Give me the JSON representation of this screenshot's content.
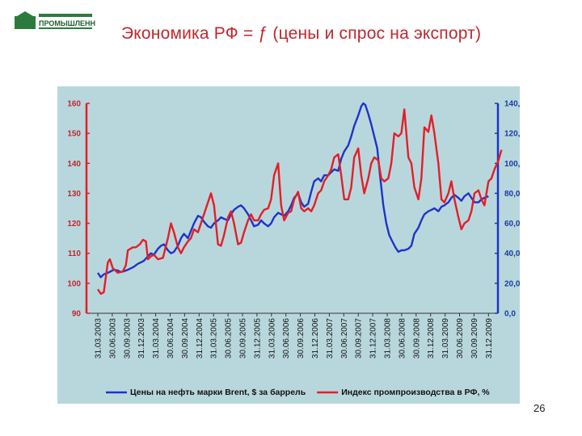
{
  "header": {
    "title": "Экономика РФ = ƒ (цены и спрос на экспорт)",
    "logo_text": "ПРОМЫШЛЕННОСТЬ"
  },
  "footer": {
    "page_number": "26"
  },
  "colors": {
    "red_series": "#e41e26",
    "blue_series": "#1f33c8",
    "panel": "#b8d7dd"
  },
  "chart_data": {
    "type": "line",
    "title": "",
    "left_axis": {
      "range": [
        90,
        160
      ],
      "ticks": [
        "90",
        "100",
        "110",
        "120",
        "130",
        "140",
        "150",
        "160"
      ]
    },
    "right_axis": {
      "range": [
        0,
        140
      ],
      "ticks": [
        "0,0",
        "20,0",
        "40,0",
        "60,0",
        "80,0",
        "100,0",
        "120,0",
        "140,0"
      ]
    },
    "x_tick_labels": [
      "31.03.2003",
      "30.06.2003",
      "30.09.2003",
      "31.12.2003",
      "31.03.2004",
      "30.06.2004",
      "30.09.2004",
      "31.12.2004",
      "31.03.2005",
      "30.06.2005",
      "30.09.2005",
      "31.12.2005",
      "31.03.2006",
      "30.06.2006",
      "30.09.2006",
      "31.12.2006",
      "31.03.2007",
      "30.06.2007",
      "30.09.2007",
      "31.12.2007",
      "31.03.2008",
      "30.06.2008",
      "30.09.2008",
      "31.12.2008",
      "31.03.2009",
      "30.06.2009",
      "30.09.2009",
      "31.12.2009"
    ],
    "series": [
      {
        "name": "Цены на нефть марки Brent, $ за баррель",
        "axis": "right",
        "color": "#1f33c8",
        "points": [
          [
            0,
            27
          ],
          [
            0.3,
            24
          ],
          [
            0.6,
            26
          ],
          [
            1,
            27
          ],
          [
            1.3,
            28
          ],
          [
            1.6,
            29
          ],
          [
            2,
            28.5
          ],
          [
            2.3,
            27.5
          ],
          [
            2.6,
            28
          ],
          [
            3,
            29
          ],
          [
            3.3,
            30
          ],
          [
            3.6,
            31
          ],
          [
            4,
            33
          ],
          [
            4.3,
            34
          ],
          [
            4.6,
            35
          ],
          [
            5,
            38
          ],
          [
            5.3,
            40
          ],
          [
            5.6,
            39
          ],
          [
            6,
            43
          ],
          [
            6.3,
            45
          ],
          [
            6.6,
            46
          ],
          [
            7,
            42
          ],
          [
            7.3,
            40
          ],
          [
            7.6,
            41
          ],
          [
            8,
            45
          ],
          [
            8.3,
            50
          ],
          [
            8.6,
            53
          ],
          [
            9,
            50
          ],
          [
            9.3,
            55
          ],
          [
            9.6,
            60
          ],
          [
            10,
            65
          ],
          [
            10.3,
            64
          ],
          [
            10.6,
            61
          ],
          [
            11,
            58
          ],
          [
            11.3,
            57
          ],
          [
            11.6,
            60
          ],
          [
            12,
            62
          ],
          [
            12.3,
            64
          ],
          [
            12.6,
            63
          ],
          [
            13,
            62
          ],
          [
            13.3,
            66
          ],
          [
            13.6,
            69
          ],
          [
            14,
            71
          ],
          [
            14.3,
            72
          ],
          [
            14.6,
            70
          ],
          [
            15,
            66
          ],
          [
            15.3,
            62
          ],
          [
            15.6,
            58
          ],
          [
            16,
            59
          ],
          [
            16.3,
            62
          ],
          [
            16.6,
            60
          ],
          [
            17,
            58
          ],
          [
            17.3,
            60
          ],
          [
            17.6,
            64
          ],
          [
            18,
            67
          ],
          [
            18.3,
            66
          ],
          [
            18.6,
            65
          ],
          [
            19,
            68
          ],
          [
            19.3,
            72
          ],
          [
            19.6,
            77
          ],
          [
            20,
            80
          ],
          [
            20.3,
            74
          ],
          [
            20.6,
            71
          ],
          [
            21,
            73
          ],
          [
            21.3,
            81
          ],
          [
            21.6,
            88
          ],
          [
            22,
            90
          ],
          [
            22.3,
            88
          ],
          [
            22.6,
            92
          ],
          [
            23,
            92
          ],
          [
            23.3,
            94
          ],
          [
            23.6,
            96
          ],
          [
            24,
            95
          ],
          [
            24.3,
            103
          ],
          [
            24.6,
            108
          ],
          [
            25,
            112
          ],
          [
            25.3,
            118
          ],
          [
            25.6,
            125
          ],
          [
            26,
            132
          ],
          [
            26.3,
            138
          ],
          [
            26.5,
            140
          ],
          [
            26.7,
            139
          ],
          [
            27,
            133
          ],
          [
            27.3,
            126
          ],
          [
            27.6,
            118
          ],
          [
            27.9,
            110
          ],
          [
            28.2,
            90
          ],
          [
            28.5,
            72
          ],
          [
            28.8,
            60
          ],
          [
            29.1,
            52
          ],
          [
            29.4,
            48
          ],
          [
            29.7,
            44
          ],
          [
            30,
            41
          ],
          [
            30.3,
            42
          ],
          [
            30.6,
            42
          ],
          [
            31,
            43
          ],
          [
            31.3,
            45
          ],
          [
            31.6,
            53
          ],
          [
            32,
            57
          ],
          [
            32.3,
            62
          ],
          [
            32.6,
            66
          ],
          [
            33,
            68
          ],
          [
            33.3,
            69
          ],
          [
            33.6,
            70
          ],
          [
            34,
            68
          ],
          [
            34.3,
            71
          ],
          [
            34.6,
            72
          ],
          [
            35,
            74
          ],
          [
            35.3,
            77
          ],
          [
            35.6,
            79
          ],
          [
            36,
            77
          ],
          [
            36.3,
            75
          ],
          [
            36.6,
            78
          ],
          [
            37,
            80
          ],
          [
            37.3,
            77
          ],
          [
            37.6,
            74
          ],
          [
            38,
            74
          ],
          [
            38.3,
            76
          ],
          [
            38.6,
            77
          ],
          [
            39,
            78
          ]
        ]
      },
      {
        "name": "Индекс промпроизводства в РФ, %",
        "axis": "left",
        "color": "#e41e26",
        "points": [
          [
            0,
            98
          ],
          [
            0.3,
            96.5
          ],
          [
            0.6,
            97
          ],
          [
            1,
            107
          ],
          [
            1.2,
            108
          ],
          [
            1.5,
            105
          ],
          [
            2,
            103.5
          ],
          [
            2.5,
            104
          ],
          [
            2.8,
            106
          ],
          [
            3,
            111
          ],
          [
            3.5,
            112
          ],
          [
            3.8,
            112
          ],
          [
            4.2,
            113
          ],
          [
            4.5,
            114.5
          ],
          [
            4.8,
            114
          ],
          [
            5,
            108
          ],
          [
            5.3,
            109
          ],
          [
            5.6,
            109.5
          ],
          [
            6,
            108
          ],
          [
            6.5,
            108.5
          ],
          [
            7,
            115
          ],
          [
            7.3,
            120
          ],
          [
            7.6,
            117
          ],
          [
            8,
            112
          ],
          [
            8.3,
            110
          ],
          [
            8.6,
            112
          ],
          [
            9,
            114
          ],
          [
            9.3,
            115
          ],
          [
            9.6,
            118
          ],
          [
            10,
            117
          ],
          [
            10.5,
            122
          ],
          [
            11,
            127
          ],
          [
            11.3,
            130
          ],
          [
            11.6,
            126
          ],
          [
            12,
            113
          ],
          [
            12.3,
            112.5
          ],
          [
            12.6,
            116
          ],
          [
            13,
            122
          ],
          [
            13.3,
            124
          ],
          [
            13.6,
            120
          ],
          [
            14,
            113
          ],
          [
            14.3,
            113.5
          ],
          [
            14.6,
            117
          ],
          [
            15,
            121
          ],
          [
            15.3,
            123
          ],
          [
            15.6,
            121
          ],
          [
            16,
            121
          ],
          [
            16.3,
            123
          ],
          [
            16.6,
            124.5
          ],
          [
            17,
            125
          ],
          [
            17.3,
            128
          ],
          [
            17.6,
            136
          ],
          [
            18,
            140
          ],
          [
            18.3,
            126
          ],
          [
            18.6,
            121
          ],
          [
            19,
            123.5
          ],
          [
            19.3,
            124
          ],
          [
            19.6,
            128
          ],
          [
            20,
            130.5
          ],
          [
            20.3,
            125
          ],
          [
            20.6,
            124
          ],
          [
            21,
            125
          ],
          [
            21.3,
            124
          ],
          [
            21.6,
            126
          ],
          [
            22,
            130
          ],
          [
            22.3,
            131
          ],
          [
            22.6,
            134
          ],
          [
            23,
            136
          ],
          [
            23.3,
            138
          ],
          [
            23.6,
            142
          ],
          [
            24,
            143
          ],
          [
            24.3,
            136
          ],
          [
            24.6,
            128
          ],
          [
            25,
            128
          ],
          [
            25.3,
            132
          ],
          [
            25.6,
            142
          ],
          [
            26,
            145
          ],
          [
            26.3,
            136
          ],
          [
            26.6,
            130
          ],
          [
            27,
            135
          ],
          [
            27.3,
            140
          ],
          [
            27.6,
            142
          ],
          [
            28,
            141
          ],
          [
            28.3,
            135
          ],
          [
            28.6,
            134
          ],
          [
            29,
            135
          ],
          [
            29.3,
            140
          ],
          [
            29.6,
            150
          ],
          [
            30,
            149
          ],
          [
            30.3,
            150
          ],
          [
            30.6,
            158
          ],
          [
            31,
            142
          ],
          [
            31.3,
            140
          ],
          [
            31.6,
            132
          ],
          [
            32,
            128
          ],
          [
            32.3,
            135
          ],
          [
            32.6,
            152
          ],
          [
            33,
            150.5
          ],
          [
            33.3,
            156
          ],
          [
            33.6,
            150
          ],
          [
            34,
            140
          ],
          [
            34.3,
            128
          ],
          [
            34.6,
            127
          ],
          [
            35,
            130
          ],
          [
            35.3,
            134
          ],
          [
            35.6,
            128
          ],
          [
            36,
            122
          ],
          [
            36.3,
            118
          ],
          [
            36.6,
            120
          ],
          [
            37,
            121
          ],
          [
            37.3,
            124
          ],
          [
            37.6,
            130
          ],
          [
            38,
            131
          ],
          [
            38.3,
            128
          ],
          [
            38.6,
            126
          ],
          [
            39,
            134
          ],
          [
            39.3,
            135
          ],
          [
            39.6,
            138
          ],
          [
            40,
            141
          ],
          [
            40.3,
            144.5
          ]
        ]
      }
    ],
    "legend": {
      "placement": "bottom"
    },
    "grid": false
  }
}
